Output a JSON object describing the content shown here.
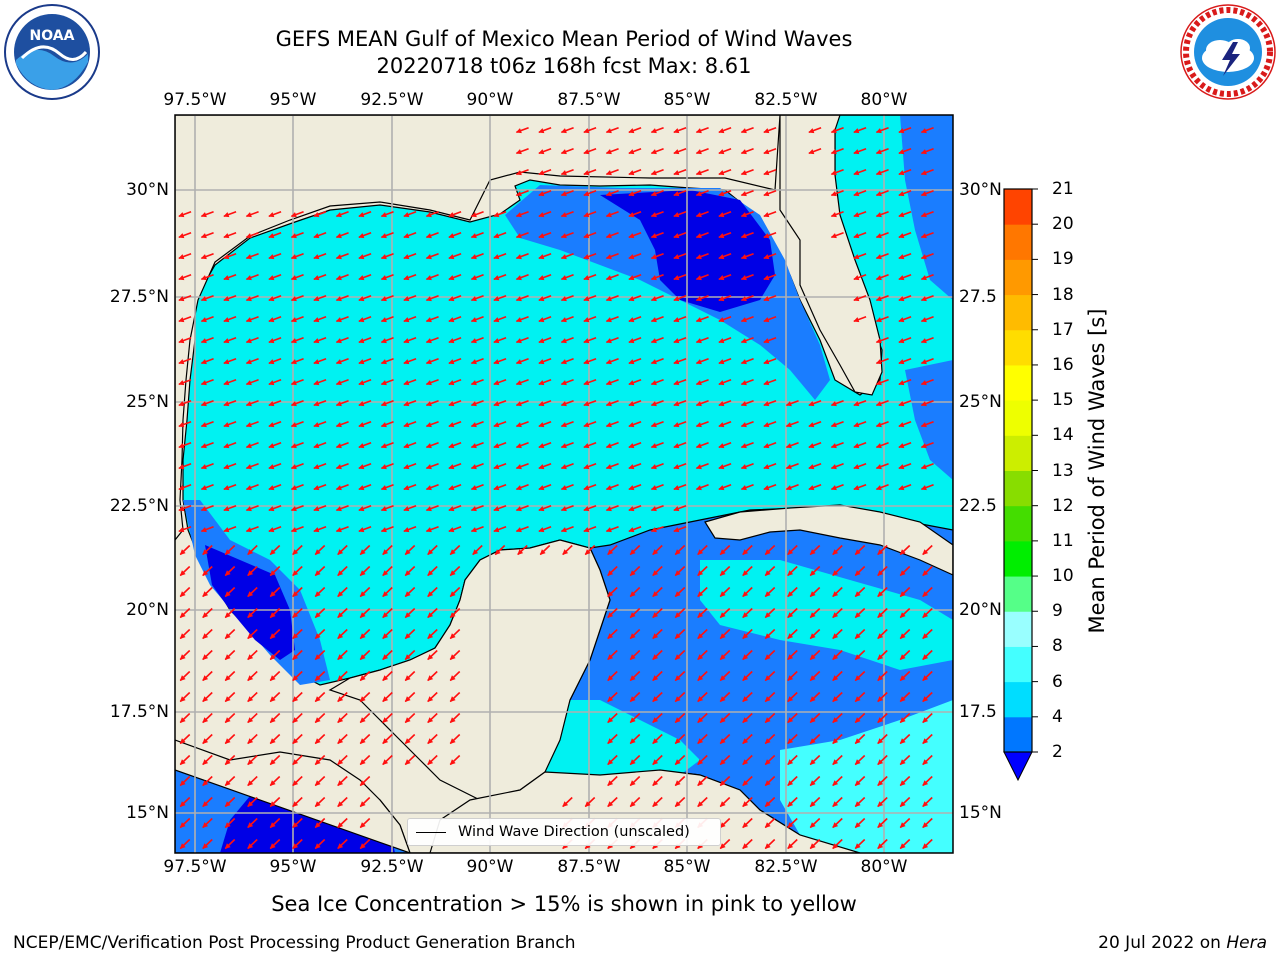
{
  "title": {
    "line1": "GEFS MEAN Gulf of Mexico Mean Period of Wind Waves",
    "line2": "20220718 t06z 168h fcst   Max: 8.61"
  },
  "logos": {
    "left": "noaa-logo",
    "right": "nws-logo",
    "nws_ring_text": "NATIONAL WEATHER SERVICE"
  },
  "map": {
    "lon_labels": [
      "97.5°W",
      "95°W",
      "92.5°W",
      "90°W",
      "87.5°W",
      "85°W",
      "82.5°W",
      "80°W"
    ],
    "lat_labels_left": [
      "30°N",
      "27.5°N",
      "25°N",
      "22.5°N",
      "20°N",
      "17.5°N",
      "15°N"
    ],
    "lat_labels_right": [
      "30°N",
      "27.5",
      "25°N",
      "22.5",
      "20°N",
      "17.5",
      "15°N"
    ],
    "lon_range": [
      -98,
      -78.2
    ],
    "lat_range": [
      14,
      31.8
    ],
    "land_color": "#efecdc",
    "arrow_color": "#ff1a1a",
    "arrow_direction": "toward west-southwest"
  },
  "colorbar": {
    "title": "Mean Period of Wind Waves [s]",
    "ticks": [
      "2",
      "4",
      "6",
      "8",
      "9",
      "10",
      "11",
      "12",
      "13",
      "14",
      "15",
      "16",
      "17",
      "18",
      "19",
      "20",
      "21"
    ],
    "colors": [
      "#0077ff",
      "#00ddff",
      "#44ffff",
      "#99ffff",
      "#55ff88",
      "#00ee00",
      "#44dd00",
      "#88dd00",
      "#ccee00",
      "#eeff00",
      "#ffff00",
      "#ffdd00",
      "#ffbb00",
      "#ff9900",
      "#ff7700",
      "#ff4400",
      "#ff1100"
    ],
    "under_color": "#0000ff"
  },
  "legend": {
    "label": "Wind Wave Direction (unscaled)"
  },
  "note": "Sea Ice Concentration > 15% is shown in pink to yellow",
  "footer": {
    "left": "NCEP/EMC/Verification Post Processing Product Generation Branch",
    "right_date": "20 Jul 2022 on ",
    "right_host": "Hera"
  }
}
